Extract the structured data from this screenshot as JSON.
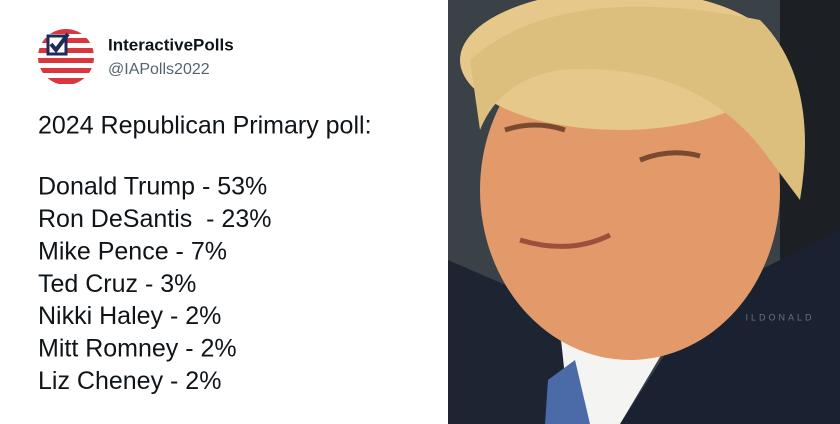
{
  "header": {
    "name": "InteractivePolls",
    "handle": "@IAPolls2022"
  },
  "post": {
    "title": "2024 Republican Primary poll:",
    "lines": [
      "Donald Trump - 53%",
      "Ron DeSantis  - 23%",
      "Mike Pence - 7%",
      "Ted Cruz - 3%",
      "Nikki Haley - 2%",
      "Mitt Romney - 2%",
      "Liz Cheney - 2%"
    ]
  },
  "photo": {
    "watermark": "ILDONALD"
  }
}
